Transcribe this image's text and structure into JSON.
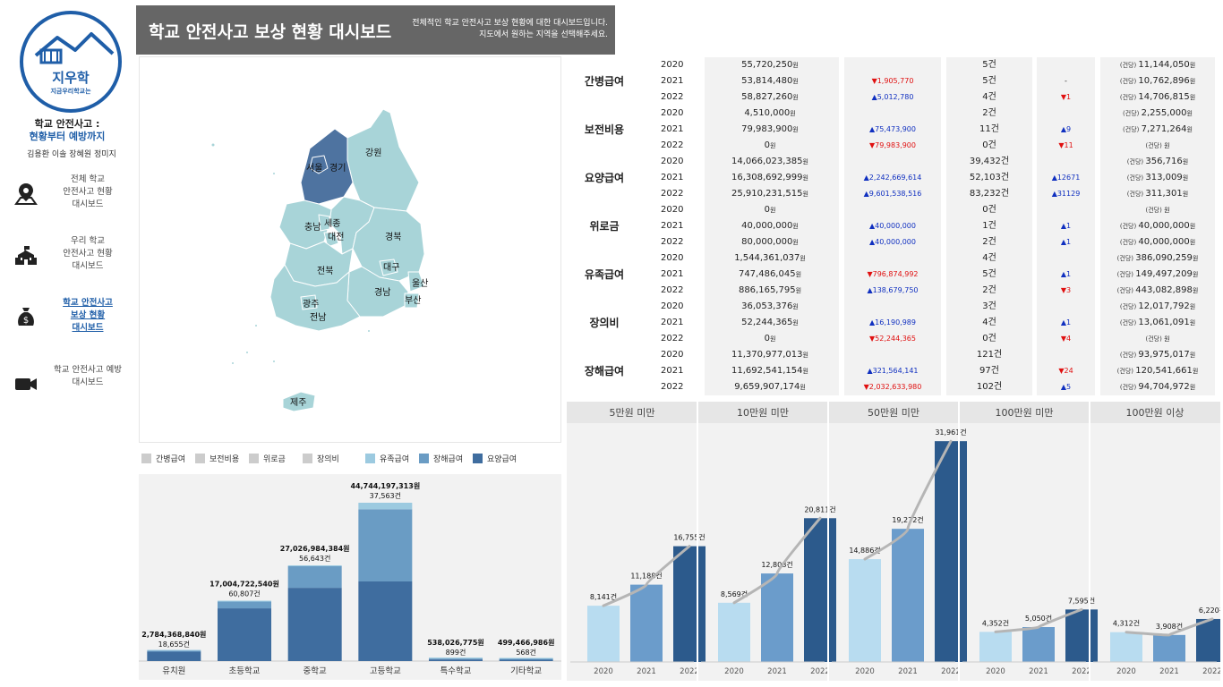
{
  "sidebar": {
    "logo_main": "지우학",
    "logo_text": "지금우리학교는",
    "title_line1": "학교 안전사고 :",
    "title_line2": "현황부터 예방까지",
    "members": "김용환  이솔  장혜원  정미지",
    "nav": [
      {
        "label": "전체 학교\n안전사고 현황\n대시보드",
        "icon": "map-pin-icon"
      },
      {
        "label": "우리 학교\n안전사고 현황\n대시보드",
        "icon": "school-icon"
      },
      {
        "label": "학교 안전사고\n보상 현황\n대시보드",
        "icon": "money-bag-icon"
      },
      {
        "label": "학교 안전사고 예방\n대시보드",
        "icon": "video-camera-icon"
      }
    ]
  },
  "header": {
    "title": "학교 안전사고 보상 현황 대시보드",
    "desc": "전체적인 학교 안전사고 보상 현황에 대한 대시보드입니다.\n지도에서 원하는 지역을 선택해주세요."
  },
  "map": {
    "regions": [
      "서울",
      "경기",
      "강원",
      "충남",
      "세종",
      "대전",
      "경북",
      "전북",
      "대구",
      "울산",
      "경남",
      "부산",
      "광주",
      "전남",
      "제주"
    ],
    "colors": {
      "selected": "#4e73a0",
      "normal": "#a8d4d8",
      "border": "#ffffff"
    }
  },
  "legend": [
    {
      "label": "간병급여",
      "color": "#cccccc"
    },
    {
      "label": "보전비용",
      "color": "#cccccc"
    },
    {
      "label": "위로금",
      "color": "#cccccc"
    },
    {
      "label": "장의비",
      "color": "#cccccc"
    },
    {
      "label": "유족급여",
      "color": "#9ccae0"
    },
    {
      "label": "장해급여",
      "color": "#6a9cc4"
    },
    {
      "label": "요양급여",
      "color": "#3f6d9f"
    }
  ],
  "table": {
    "unit_won": "원",
    "per_case": "(건당)",
    "rows": [
      {
        "cat": "간병급여",
        "year": "2020",
        "amount": "55,720,250",
        "amount_delta": "",
        "count": "5건",
        "count_delta": "",
        "per": "11,144,050"
      },
      {
        "cat": "",
        "year": "2021",
        "amount": "53,814,480",
        "amount_delta": "▼1,905,770",
        "count": "5건",
        "count_delta": "-",
        "per": "10,762,896"
      },
      {
        "cat": "",
        "year": "2022",
        "amount": "58,827,260",
        "amount_delta": "▲5,012,780",
        "count": "4건",
        "count_delta": "▼1",
        "per": "14,706,815"
      },
      {
        "cat": "보전비용",
        "year": "2020",
        "amount": "4,510,000",
        "amount_delta": "",
        "count": "2건",
        "count_delta": "",
        "per": "2,255,000"
      },
      {
        "cat": "",
        "year": "2021",
        "amount": "79,983,900",
        "amount_delta": "▲75,473,900",
        "count": "11건",
        "count_delta": "▲9",
        "per": "7,271,264"
      },
      {
        "cat": "",
        "year": "2022",
        "amount": "0",
        "amount_delta": "▼79,983,900",
        "count": "0건",
        "count_delta": "▼11",
        "per": ""
      },
      {
        "cat": "요양급여",
        "year": "2020",
        "amount": "14,066,023,385",
        "amount_delta": "",
        "count": "39,432건",
        "count_delta": "",
        "per": "356,716"
      },
      {
        "cat": "",
        "year": "2021",
        "amount": "16,308,692,999",
        "amount_delta": "▲2,242,669,614",
        "count": "52,103건",
        "count_delta": "▲12671",
        "per": "313,009"
      },
      {
        "cat": "",
        "year": "2022",
        "amount": "25,910,231,515",
        "amount_delta": "▲9,601,538,516",
        "count": "83,232건",
        "count_delta": "▲31129",
        "per": "311,301"
      },
      {
        "cat": "위로금",
        "year": "2020",
        "amount": "0",
        "amount_delta": "",
        "count": "0건",
        "count_delta": "",
        "per": ""
      },
      {
        "cat": "",
        "year": "2021",
        "amount": "40,000,000",
        "amount_delta": "▲40,000,000",
        "count": "1건",
        "count_delta": "▲1",
        "per": "40,000,000"
      },
      {
        "cat": "",
        "year": "2022",
        "amount": "80,000,000",
        "amount_delta": "▲40,000,000",
        "count": "2건",
        "count_delta": "▲1",
        "per": "40,000,000"
      },
      {
        "cat": "유족급여",
        "year": "2020",
        "amount": "1,544,361,037",
        "amount_delta": "",
        "count": "4건",
        "count_delta": "",
        "per": "386,090,259"
      },
      {
        "cat": "",
        "year": "2021",
        "amount": "747,486,045",
        "amount_delta": "▼796,874,992",
        "count": "5건",
        "count_delta": "▲1",
        "per": "149,497,209"
      },
      {
        "cat": "",
        "year": "2022",
        "amount": "886,165,795",
        "amount_delta": "▲138,679,750",
        "count": "2건",
        "count_delta": "▼3",
        "per": "443,082,898"
      },
      {
        "cat": "장의비",
        "year": "2020",
        "amount": "36,053,376",
        "amount_delta": "",
        "count": "3건",
        "count_delta": "",
        "per": "12,017,792"
      },
      {
        "cat": "",
        "year": "2021",
        "amount": "52,244,365",
        "amount_delta": "▲16,190,989",
        "count": "4건",
        "count_delta": "▲1",
        "per": "13,061,091"
      },
      {
        "cat": "",
        "year": "2022",
        "amount": "0",
        "amount_delta": "▼52,244,365",
        "count": "0건",
        "count_delta": "▼4",
        "per": ""
      },
      {
        "cat": "장해급여",
        "year": "2020",
        "amount": "11,370,977,013",
        "amount_delta": "",
        "count": "121건",
        "count_delta": "",
        "per": "93,975,017"
      },
      {
        "cat": "",
        "year": "2021",
        "amount": "11,692,541,154",
        "amount_delta": "▲321,564,141",
        "count": "97건",
        "count_delta": "▼24",
        "per": "120,541,661"
      },
      {
        "cat": "",
        "year": "2022",
        "amount": "9,659,907,174",
        "amount_delta": "▼2,032,633,980",
        "count": "102건",
        "count_delta": "▲5",
        "per": "94,704,972"
      }
    ]
  },
  "chart_data": [
    {
      "type": "bar",
      "title": "",
      "stacked": true,
      "categories": [
        "유치원",
        "초등학교",
        "중학교",
        "고등학교",
        "특수학교",
        "기타학교"
      ],
      "totals": [
        "2,784,368,840원",
        "17,004,722,540원",
        "27,026,984,384원",
        "44,744,197,313원",
        "538,026,775원",
        "499,466,986원"
      ],
      "counts": [
        "18,655건",
        "60,807건",
        "56,643건",
        "37,563건",
        "899건",
        "568건"
      ],
      "total_values": [
        2784368840,
        17004722540,
        27026984384,
        44744197313,
        538026775,
        499466986
      ],
      "series": [
        {
          "name": "요양급여",
          "values": [
            2650000000,
            14900000000,
            20700000000,
            22500000000,
            470000000,
            380000000
          ]
        },
        {
          "name": "장해급여",
          "values": [
            110000000,
            1900000000,
            6100000000,
            20400000000,
            60000000,
            110000000
          ]
        },
        {
          "name": "유족급여",
          "values": [
            24368840,
            204722540,
            226984384,
            1844197313,
            8026775,
            9466986
          ]
        }
      ],
      "ylim": [
        0,
        45000000000
      ]
    },
    {
      "type": "bar",
      "title": "",
      "panels": [
        "5만원 미만",
        "10만원 미만",
        "50만원 미만",
        "100만원 미만",
        "100만원 이상"
      ],
      "x": [
        "2020",
        "2021",
        "2022"
      ],
      "values": [
        [
          8141,
          11188,
          16755
        ],
        [
          8569,
          12808,
          20811
        ],
        [
          14886,
          19272,
          31961
        ],
        [
          4352,
          5050,
          7595
        ],
        [
          4312,
          3908,
          6220
        ]
      ],
      "labels": [
        [
          "8,141건",
          "11,188건",
          "16,755건"
        ],
        [
          "8,569건",
          "12,808건",
          "20,811건"
        ],
        [
          "14,886건",
          "19,272건",
          "31,961건"
        ],
        [
          "4,352건",
          "5,050건",
          "7,595건"
        ],
        [
          "4,312건",
          "3,908건",
          "6,220건"
        ]
      ],
      "ylim": [
        0,
        32500
      ],
      "colors": [
        "#b8dcf0",
        "#6b9ccb",
        "#2c5a8c"
      ],
      "trend_line": true
    }
  ]
}
